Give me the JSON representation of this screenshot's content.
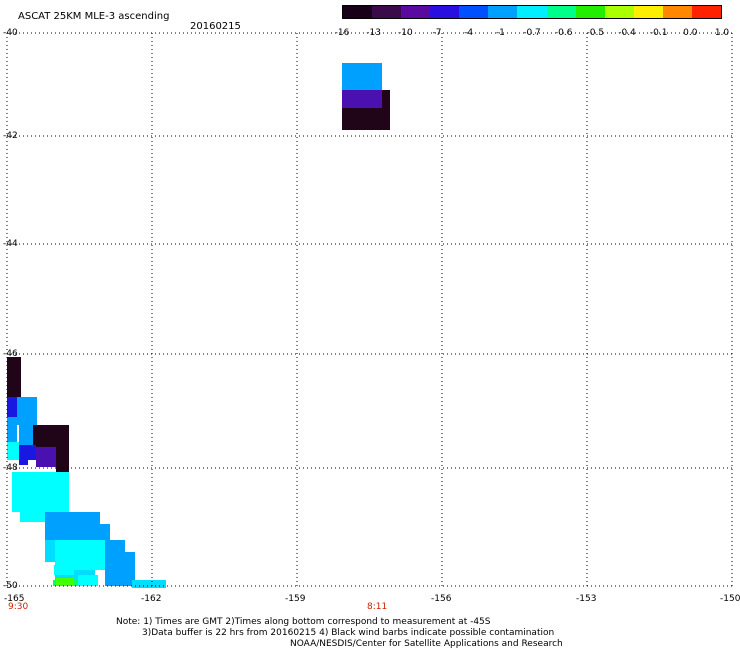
{
  "header": {
    "title": "ASCAT 25KM MLE-3 ascending",
    "date": "20160215"
  },
  "colorbar": {
    "labels": [
      "-16",
      "-13",
      "-10",
      "-7",
      "-4",
      "-1",
      "-0.7",
      "-0.6",
      "-0.5",
      "-0.4",
      "-0.1",
      "0.0",
      "1.0"
    ],
    "colors": [
      "#180018",
      "#3a0a4a",
      "#5a0aa0",
      "#2a10e0",
      "#0050ff",
      "#00a0ff",
      "#00eeff",
      "#00ff88",
      "#22ee00",
      "#aaff00",
      "#ffee00",
      "#ff8800",
      "#ff2200"
    ]
  },
  "axes": {
    "lat_labels": [
      "-40",
      "-42",
      "-44",
      "-46",
      "-48",
      "-50"
    ],
    "lon_labels": [
      "-165",
      "-162",
      "-159",
      "-156",
      "-153",
      "-150"
    ],
    "times": [
      "9:30",
      "8:11"
    ]
  },
  "notes": {
    "line1": "Note: 1) Times are GMT 2)Times along bottom correspond to measurement at -45S",
    "line2": "3)Data buffer is 22 hrs from 20160215 4) Black wind barbs indicate possible contamination",
    "line3": "NOAA/NESDIS/Center for Satellite Applications and Research"
  },
  "map": {
    "colors": {
      "dark": "#200418",
      "purple": "#4a10b0",
      "blue": "#1818e0",
      "lightblue": "#00a0ff",
      "cyan": "#00ffff",
      "aqua": "#00ddff",
      "green": "#00ff66",
      "lime": "#44ff00"
    }
  }
}
